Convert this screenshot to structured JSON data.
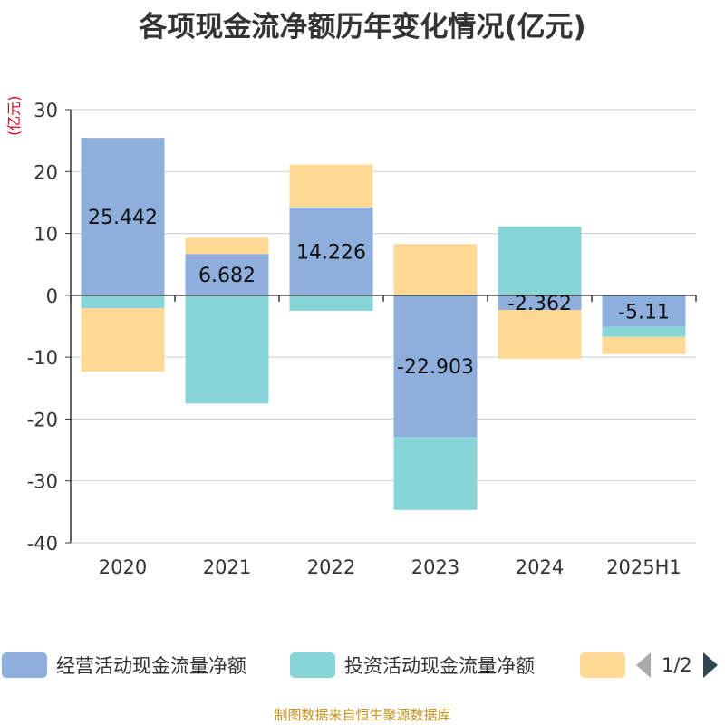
{
  "title": "各项现金流净额历年变化情况(亿元)",
  "unit": "(亿元)",
  "source": "制图数据来自恒生聚源数据库",
  "pager": "1/2",
  "legend": [
    {
      "name": "经营活动现金流量净额",
      "color": "#8eaedb"
    },
    {
      "name": "投资活动现金流量净额",
      "color": "#88d5d8"
    },
    {
      "name": "",
      "color": "#fdd995"
    }
  ],
  "chart_data": {
    "type": "bar",
    "stacked": true,
    "categories": [
      "2020",
      "2021",
      "2022",
      "2023",
      "2024",
      "2025H1"
    ],
    "ylim": [
      -40,
      30
    ],
    "yticks": [
      -40,
      -30,
      -20,
      -10,
      0,
      10,
      20,
      30
    ],
    "grid": true,
    "legend_position": "bottom",
    "series": [
      {
        "name": "经营活动现金流量净额",
        "color": "#8eaedb",
        "values": [
          25.442,
          6.682,
          14.226,
          -22.903,
          -2.362,
          -5.11
        ],
        "labels": [
          "25.442",
          "6.682",
          "14.226",
          "-22.903",
          "-2.362",
          "-5.11"
        ]
      },
      {
        "name": "投资活动现金流量净额",
        "color": "#88d5d8",
        "values": [
          -2.1,
          -17.5,
          -2.5,
          -11.8,
          11.1,
          -1.6
        ]
      },
      {
        "color": "#fdd995",
        "values": [
          -10.2,
          2.6,
          6.9,
          8.3,
          -7.9,
          -2.8
        ]
      }
    ]
  }
}
